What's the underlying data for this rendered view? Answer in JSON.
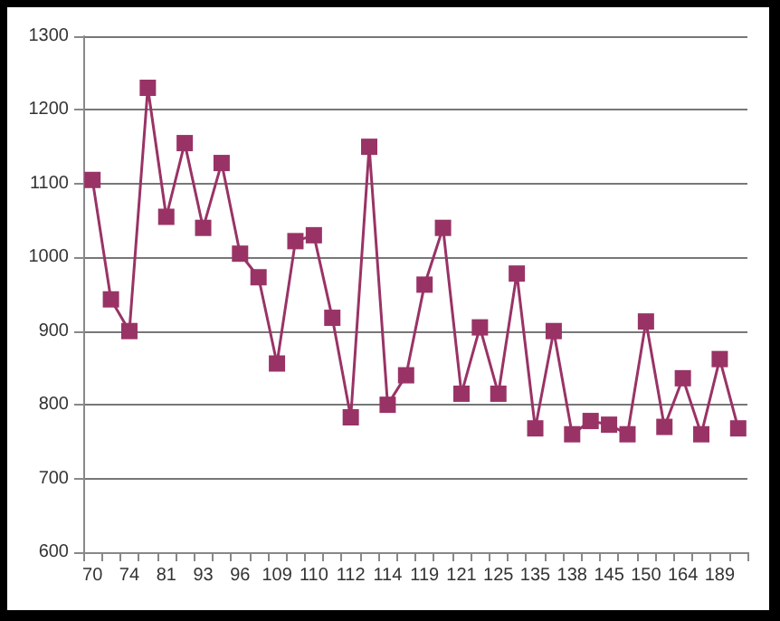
{
  "chart_data": {
    "type": "line",
    "categories": [
      "70",
      null,
      "74",
      null,
      "81",
      null,
      "93",
      null,
      "96",
      null,
      "109",
      null,
      "110",
      null,
      "112",
      null,
      "114",
      null,
      "119",
      null,
      "121",
      null,
      "125",
      null,
      "135",
      null,
      "138",
      null,
      "145",
      null,
      "150",
      null,
      "164",
      null,
      "189",
      null
    ],
    "series": [
      {
        "color": "#993366",
        "values": [
          1105,
          943,
          900,
          1230,
          1055,
          1155,
          1040,
          1128,
          1005,
          973,
          856,
          1022,
          1030,
          918,
          783,
          1150,
          800,
          840,
          963,
          1040,
          815,
          905,
          815,
          978,
          768,
          900,
          760,
          778,
          773,
          760,
          913,
          770,
          836,
          760,
          862,
          768
        ]
      }
    ],
    "ylim": [
      600,
      1300
    ],
    "yticks": [
      600,
      700,
      800,
      900,
      1000,
      1100,
      1200,
      1300
    ],
    "grid": "y",
    "marker": "square",
    "line_style": "solid"
  }
}
